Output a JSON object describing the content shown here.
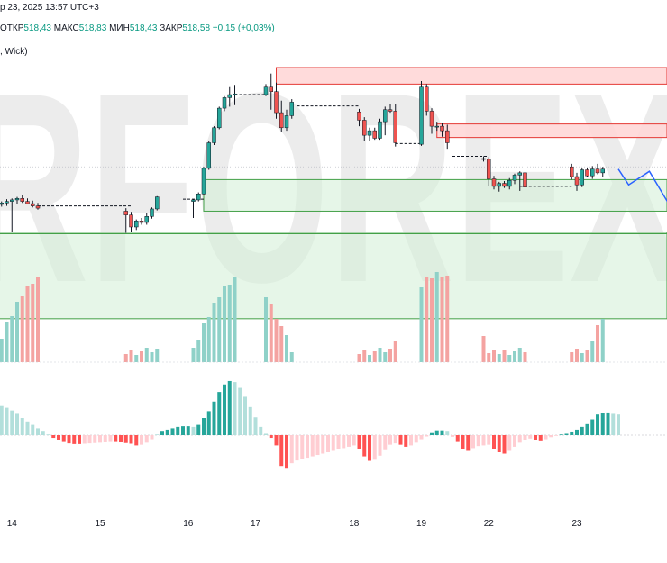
{
  "header": {
    "date_text": "р 23, 2025 13:57 UTC+3",
    "open_label": "ОТКР",
    "open_value": "518,43",
    "high_label": "МАКС",
    "high_value": "518,83",
    "low_label": "МИН",
    "low_value": "518,43",
    "close_label": "ЗАКР",
    "close_value": "518,58",
    "change_text": "+0,15 (+0,03%)",
    "indicator_text": ", Wick)"
  },
  "watermark": "RFOREX",
  "colors": {
    "bull": "#26a69a",
    "bear": "#ef5350",
    "bull_vol": "#8fd1c8",
    "bear_vol": "#f4a3a1",
    "resist_fill": "#ffd7d7",
    "resist_border": "#e53935",
    "support_fill": "#d6f0d8",
    "support_border": "#43a047",
    "forecast": "#2962ff"
  },
  "chart_data": {
    "type": "candlestick",
    "x_ticks": [
      {
        "label": "14",
        "index": 3
      },
      {
        "label": "15",
        "index": 20
      },
      {
        "label": "16",
        "index": 37
      },
      {
        "label": "17",
        "index": 50
      },
      {
        "label": "18",
        "index": 69
      },
      {
        "label": "19",
        "index": 82
      },
      {
        "label": "22",
        "index": 95
      },
      {
        "label": "23",
        "index": 112
      }
    ],
    "candles": [
      [
        512.0,
        512.4,
        511.8,
        512.2
      ],
      [
        512.2,
        512.6,
        511.9,
        512.4
      ],
      [
        512.4,
        512.9,
        512.0,
        512.6
      ],
      [
        512.6,
        513.0,
        508.5,
        512.8
      ],
      [
        512.8,
        513.2,
        512.3,
        513.0
      ],
      [
        513.0,
        513.4,
        512.4,
        512.6
      ],
      [
        512.6,
        513.0,
        512.2,
        512.3
      ],
      [
        512.3,
        512.7,
        511.8,
        512.0
      ],
      [
        512.0,
        512.4,
        511.5,
        511.7
      ],
      [
        511.7,
        512.1,
        511.3,
        511.5
      ],
      [
        511.5,
        511.9,
        511.2,
        511.6
      ],
      [
        511.6,
        511.9,
        511.3,
        511.5
      ],
      [
        511.5,
        511.8,
        511.2,
        511.4
      ],
      [
        511.4,
        511.7,
        511.1,
        511.5
      ],
      [
        511.5,
        511.8,
        511.2,
        511.6
      ],
      [
        511.6,
        511.9,
        511.3,
        511.5
      ],
      [
        511.5,
        511.8,
        511.2,
        511.4
      ],
      [
        511.4,
        511.7,
        511.1,
        511.5
      ],
      [
        511.5,
        511.8,
        511.2,
        511.6
      ],
      [
        511.6,
        511.9,
        511.3,
        511.5
      ],
      [
        511.5,
        511.8,
        511.2,
        511.6
      ],
      [
        511.6,
        511.9,
        511.3,
        511.5
      ],
      [
        511.5,
        511.8,
        511.2,
        511.4
      ],
      [
        511.4,
        511.7,
        511.1,
        511.5
      ],
      [
        511.5,
        511.8,
        511.2,
        511.3
      ],
      [
        511.3,
        511.7,
        508.4,
        510.8
      ],
      [
        510.8,
        511.2,
        508.5,
        509.2
      ],
      [
        509.2,
        510.2,
        508.8,
        510.0
      ],
      [
        510.0,
        510.4,
        509.5,
        509.8
      ],
      [
        509.8,
        511.0,
        509.5,
        510.6
      ],
      [
        510.6,
        511.8,
        510.3,
        511.6
      ],
      [
        511.6,
        513.3,
        511.4,
        513.2
      ],
      [
        513.2,
        513.5,
        512.8,
        513.1
      ],
      [
        513.1,
        513.4,
        512.8,
        513.0
      ],
      [
        513.0,
        513.3,
        512.7,
        512.9
      ],
      [
        512.9,
        513.2,
        512.6,
        512.8
      ],
      [
        512.8,
        513.1,
        512.5,
        512.7
      ],
      [
        512.7,
        513.0,
        512.4,
        512.6
      ],
      [
        512.6,
        512.9,
        510.4,
        512.8
      ],
      [
        512.8,
        513.8,
        512.6,
        513.6
      ],
      [
        513.6,
        517.2,
        513.4,
        517.0
      ],
      [
        517.0,
        520.6,
        516.8,
        520.4
      ],
      [
        520.4,
        522.6,
        520.1,
        522.4
      ],
      [
        522.4,
        525.2,
        522.2,
        525.0
      ],
      [
        525.0,
        526.6,
        524.6,
        526.4
      ],
      [
        526.4,
        527.8,
        525.2,
        526.8
      ],
      [
        526.8,
        528.1,
        525.4,
        526.9
      ],
      [
        526.9,
        527.2,
        526.4,
        526.8
      ],
      [
        526.8,
        527.1,
        526.4,
        526.7
      ],
      [
        526.7,
        527.0,
        526.4,
        526.8
      ],
      [
        526.8,
        527.1,
        526.5,
        526.7
      ],
      [
        526.7,
        527.0,
        526.4,
        526.8
      ],
      [
        526.8,
        528.2,
        526.6,
        527.8
      ],
      [
        527.8,
        529.6,
        524.8,
        527.2
      ],
      [
        527.2,
        528.4,
        523.6,
        524.4
      ],
      [
        524.4,
        526.0,
        521.8,
        522.4
      ],
      [
        522.4,
        524.8,
        522.0,
        524.0
      ],
      [
        524.0,
        526.2,
        523.6,
        525.8
      ],
      [
        525.8,
        526.2,
        524.9,
        525.4
      ],
      [
        525.4,
        525.8,
        525.0,
        525.3
      ],
      [
        525.3,
        525.6,
        525.0,
        525.2
      ],
      [
        525.2,
        525.5,
        524.9,
        525.1
      ],
      [
        525.1,
        525.4,
        524.8,
        525.0
      ],
      [
        525.0,
        525.3,
        524.7,
        524.9
      ],
      [
        524.9,
        525.2,
        524.6,
        524.8
      ],
      [
        524.8,
        525.1,
        524.5,
        524.7
      ],
      [
        524.7,
        525.0,
        524.4,
        524.6
      ],
      [
        524.6,
        524.9,
        524.3,
        524.5
      ],
      [
        524.5,
        524.8,
        524.2,
        524.4
      ],
      [
        524.4,
        524.8,
        524.1,
        524.5
      ],
      [
        524.5,
        524.9,
        522.6,
        523.4
      ],
      [
        523.4,
        523.8,
        520.6,
        521.4
      ],
      [
        521.4,
        522.4,
        520.6,
        522.0
      ],
      [
        522.0,
        522.4,
        520.8,
        521.0
      ],
      [
        521.0,
        523.6,
        520.8,
        523.2
      ],
      [
        523.2,
        525.2,
        521.4,
        524.8
      ],
      [
        524.8,
        525.5,
        524.4,
        524.6
      ],
      [
        524.6,
        525.6,
        519.9,
        520.4
      ],
      [
        520.4,
        520.8,
        520.1,
        520.3
      ],
      [
        520.3,
        520.6,
        520.0,
        520.2
      ],
      [
        520.2,
        520.5,
        519.9,
        520.3
      ],
      [
        520.3,
        520.6,
        520.0,
        520.2
      ],
      [
        520.2,
        528.6,
        520.0,
        527.8
      ],
      [
        527.8,
        528.2,
        524.0,
        524.6
      ],
      [
        524.6,
        525.0,
        521.6,
        522.6
      ],
      [
        522.6,
        523.2,
        522.0,
        522.6
      ],
      [
        522.6,
        523.0,
        521.2,
        522.0
      ],
      [
        522.0,
        522.8,
        519.6,
        520.4
      ],
      [
        520.4,
        521.2,
        518.0,
        518.6
      ],
      [
        518.6,
        519.0,
        518.2,
        518.7
      ],
      [
        518.7,
        519.0,
        518.3,
        518.6
      ],
      [
        518.6,
        518.9,
        518.2,
        518.5
      ],
      [
        518.5,
        518.8,
        518.1,
        518.4
      ],
      [
        518.4,
        518.7,
        518.0,
        518.3
      ],
      [
        518.3,
        518.6,
        517.9,
        518.2
      ],
      [
        518.2,
        518.5,
        514.6,
        515.6
      ],
      [
        515.6,
        516.0,
        514.2,
        514.6
      ],
      [
        514.6,
        515.2,
        513.9,
        515.0
      ],
      [
        515.0,
        515.3,
        514.4,
        514.6
      ],
      [
        514.6,
        515.7,
        514.2,
        515.4
      ],
      [
        515.4,
        516.3,
        514.9,
        516.1
      ],
      [
        516.1,
        516.6,
        514.0,
        516.4
      ],
      [
        516.4,
        516.7,
        514.0,
        514.5
      ],
      [
        514.5,
        514.8,
        514.2,
        514.6
      ],
      [
        514.6,
        514.9,
        514.3,
        514.5
      ],
      [
        514.5,
        514.8,
        514.2,
        514.6
      ],
      [
        514.6,
        514.9,
        514.3,
        514.5
      ],
      [
        514.5,
        514.8,
        514.2,
        514.6
      ],
      [
        514.6,
        514.9,
        514.3,
        514.5
      ],
      [
        514.5,
        514.8,
        514.2,
        514.6
      ],
      [
        514.6,
        519.0,
        514.3,
        517.2
      ],
      [
        517.2,
        517.6,
        515.5,
        515.9
      ],
      [
        515.9,
        516.4,
        514.0,
        514.8
      ],
      [
        514.8,
        517.0,
        514.5,
        516.8
      ],
      [
        516.8,
        517.1,
        515.8,
        516.0
      ],
      [
        516.0,
        517.3,
        515.6,
        516.9
      ],
      [
        516.9,
        517.6,
        516.2,
        516.4
      ],
      [
        516.4,
        517.2,
        515.8,
        516.9
      ]
    ],
    "hidden_candles": [
      9,
      10,
      11,
      12,
      13,
      14,
      15,
      16,
      17,
      18,
      19,
      20,
      21,
      22,
      23,
      24,
      32,
      33,
      34,
      35,
      36,
      37,
      47,
      48,
      49,
      50,
      51,
      58,
      59,
      60,
      61,
      62,
      63,
      64,
      65,
      66,
      67,
      68,
      69,
      78,
      79,
      80,
      81,
      88,
      89,
      90,
      91,
      92,
      93,
      103,
      104,
      105,
      106,
      107,
      108,
      109,
      110
    ],
    "dashed_levels": [
      {
        "from": 8,
        "to": 26,
        "price": 512.0
      },
      {
        "from": 36,
        "to": 40,
        "price": 512.9
      },
      {
        "from": 46,
        "to": 52,
        "price": 526.8
      },
      {
        "from": 58,
        "to": 70,
        "price": 525.3
      },
      {
        "from": 77,
        "to": 82,
        "price": 520.3
      },
      {
        "from": 88,
        "to": 95,
        "price": 518.6
      },
      {
        "from": 101,
        "to": 111,
        "price": 514.6
      }
    ],
    "zones": [
      {
        "kind": "resistance",
        "from": 54,
        "price_top": 530.4,
        "price_bottom": 528.2
      },
      {
        "kind": "resistance",
        "from": 85,
        "price_top": 522.9,
        "price_bottom": 521.1
      },
      {
        "kind": "support",
        "from": 40,
        "price_top": 515.5,
        "price_bottom": 511.3
      },
      {
        "kind": "support",
        "from": 0,
        "price_top": 508.5,
        "price_bottom": 497.0
      }
    ],
    "forecast": [
      [
        120,
        516.9
      ],
      [
        122,
        514.8
      ],
      [
        126,
        516.6
      ],
      [
        131,
        510.8
      ]
    ],
    "volume": [
      0,
      0,
      0,
      0,
      0,
      0,
      0,
      0,
      0,
      0,
      0,
      0,
      0,
      0,
      0,
      0,
      0,
      0,
      0,
      0,
      0,
      0,
      0,
      0,
      0,
      0,
      0,
      0,
      0,
      0,
      0,
      0,
      0,
      0,
      0,
      0,
      0,
      0,
      0,
      0,
      0,
      0,
      0,
      0,
      0,
      0,
      0,
      0,
      0,
      0,
      0,
      0,
      0,
      0,
      0,
      0,
      0,
      0,
      0,
      0,
      0,
      0,
      0,
      0,
      0,
      0,
      0,
      0,
      0,
      0,
      0,
      0,
      0,
      0,
      0,
      0,
      0,
      0,
      0,
      0,
      0,
      0,
      0,
      0,
      0,
      0,
      0,
      0,
      0,
      0,
      0,
      0,
      0,
      0,
      0,
      0,
      0,
      0,
      0,
      0,
      0,
      0,
      0,
      0,
      0,
      0,
      0,
      0,
      0,
      0,
      0,
      0,
      0,
      0,
      0,
      0,
      0,
      0,
      0,
      0,
      0
    ],
    "histogram": [
      0.9,
      0.85,
      0.8,
      0.72,
      0.62,
      0.5,
      0.4,
      0.3,
      0.2,
      0.1,
      0.02,
      -0.08,
      -0.14,
      -0.2,
      -0.24,
      -0.26,
      -0.26,
      -0.25,
      -0.24,
      -0.23,
      -0.22,
      -0.21,
      -0.2,
      -0.2,
      -0.21,
      -0.23,
      -0.25,
      -0.3,
      -0.28,
      -0.22,
      -0.12,
      0.02,
      0.1,
      0.16,
      0.2,
      0.24,
      0.26,
      0.26,
      0.24,
      0.3,
      0.5,
      0.7,
      0.98,
      1.26,
      1.48,
      1.58,
      1.55,
      1.38,
      1.12,
      0.82,
      0.52,
      0.24,
      0.04,
      -0.08,
      -0.3,
      -0.9,
      -0.98,
      -0.82,
      -0.74,
      -0.7,
      -0.66,
      -0.62,
      -0.58,
      -0.54,
      -0.5,
      -0.46,
      -0.42,
      -0.38,
      -0.34,
      -0.3,
      -0.4,
      -0.62,
      -0.75,
      -0.72,
      -0.6,
      -0.44,
      -0.28,
      -0.24,
      -0.28,
      -0.34,
      -0.3,
      -0.22,
      -0.12,
      -0.04,
      0.06,
      0.14,
      0.14,
      0.1,
      -0.05,
      -0.2,
      -0.42,
      -0.46,
      -0.38,
      -0.32,
      -0.3,
      -0.28,
      -0.4,
      -0.5,
      -0.54,
      -0.46,
      -0.34,
      -0.22,
      -0.14,
      -0.1,
      -0.14,
      -0.18,
      -0.12,
      -0.06,
      -0.02,
      0.02,
      0.04,
      0.08,
      0.16,
      0.24,
      0.32,
      0.46,
      0.6,
      0.64,
      0.66,
      0.62,
      0.6
    ],
    "grid": false
  }
}
